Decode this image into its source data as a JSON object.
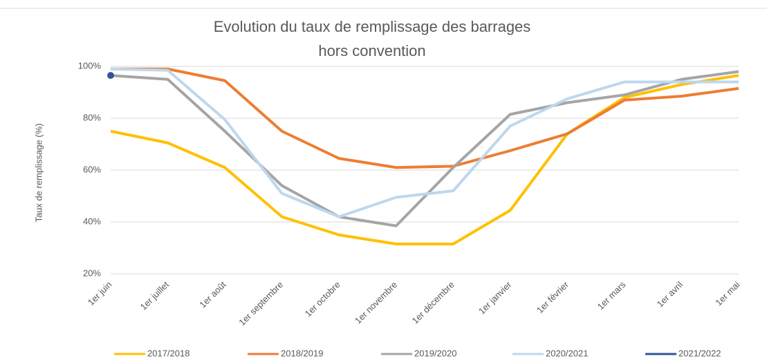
{
  "chart_data": {
    "type": "line",
    "title": [
      "Evolution du taux de remplissage des barrages",
      "hors convention"
    ],
    "ylabel": "Taux de remplissage (%)",
    "categories": [
      "1er juin",
      "1er juillet",
      "1er août",
      "1er septembre",
      "1er octobre",
      "1er novembre",
      "1er décembre",
      "1er janvier",
      "1er février",
      "1er mars",
      "1er avril",
      "1er mai"
    ],
    "series": [
      {
        "name": "2017/2018",
        "color": "#ffc000",
        "values": [
          75,
          70.5,
          61,
          42,
          35,
          31.5,
          31.5,
          44.5,
          74,
          88,
          93,
          96.5
        ]
      },
      {
        "name": "2018/2019",
        "color": "#ed7d31",
        "values": [
          99,
          99,
          94.5,
          75,
          64.5,
          61,
          61.5,
          67.5,
          74,
          87,
          88.5,
          91.5
        ]
      },
      {
        "name": "2019/2020",
        "color": "#a5a5a5",
        "values": [
          96.5,
          95,
          75,
          54,
          42,
          38.5,
          61,
          81.5,
          86,
          89,
          95,
          98
        ]
      },
      {
        "name": "2020/2021",
        "color": "#bdd7ee",
        "values": [
          99,
          98.5,
          79.5,
          51,
          42,
          49.5,
          52,
          77,
          87.5,
          94,
          94,
          94
        ]
      },
      {
        "name": "2021/2022",
        "color": "#2f5597",
        "values": [
          96.5,
          null,
          null,
          null,
          null,
          null,
          null,
          null,
          null,
          null,
          null,
          null
        ]
      }
    ],
    "ylim": [
      20,
      100
    ],
    "yticks": [
      {
        "value": 20,
        "label": "20%"
      },
      {
        "value": 40,
        "label": "40%"
      },
      {
        "value": 60,
        "label": "60%"
      },
      {
        "value": 80,
        "label": "80%"
      },
      {
        "value": 100,
        "label": "100%"
      }
    ],
    "grid": true,
    "legend": "bottom"
  }
}
